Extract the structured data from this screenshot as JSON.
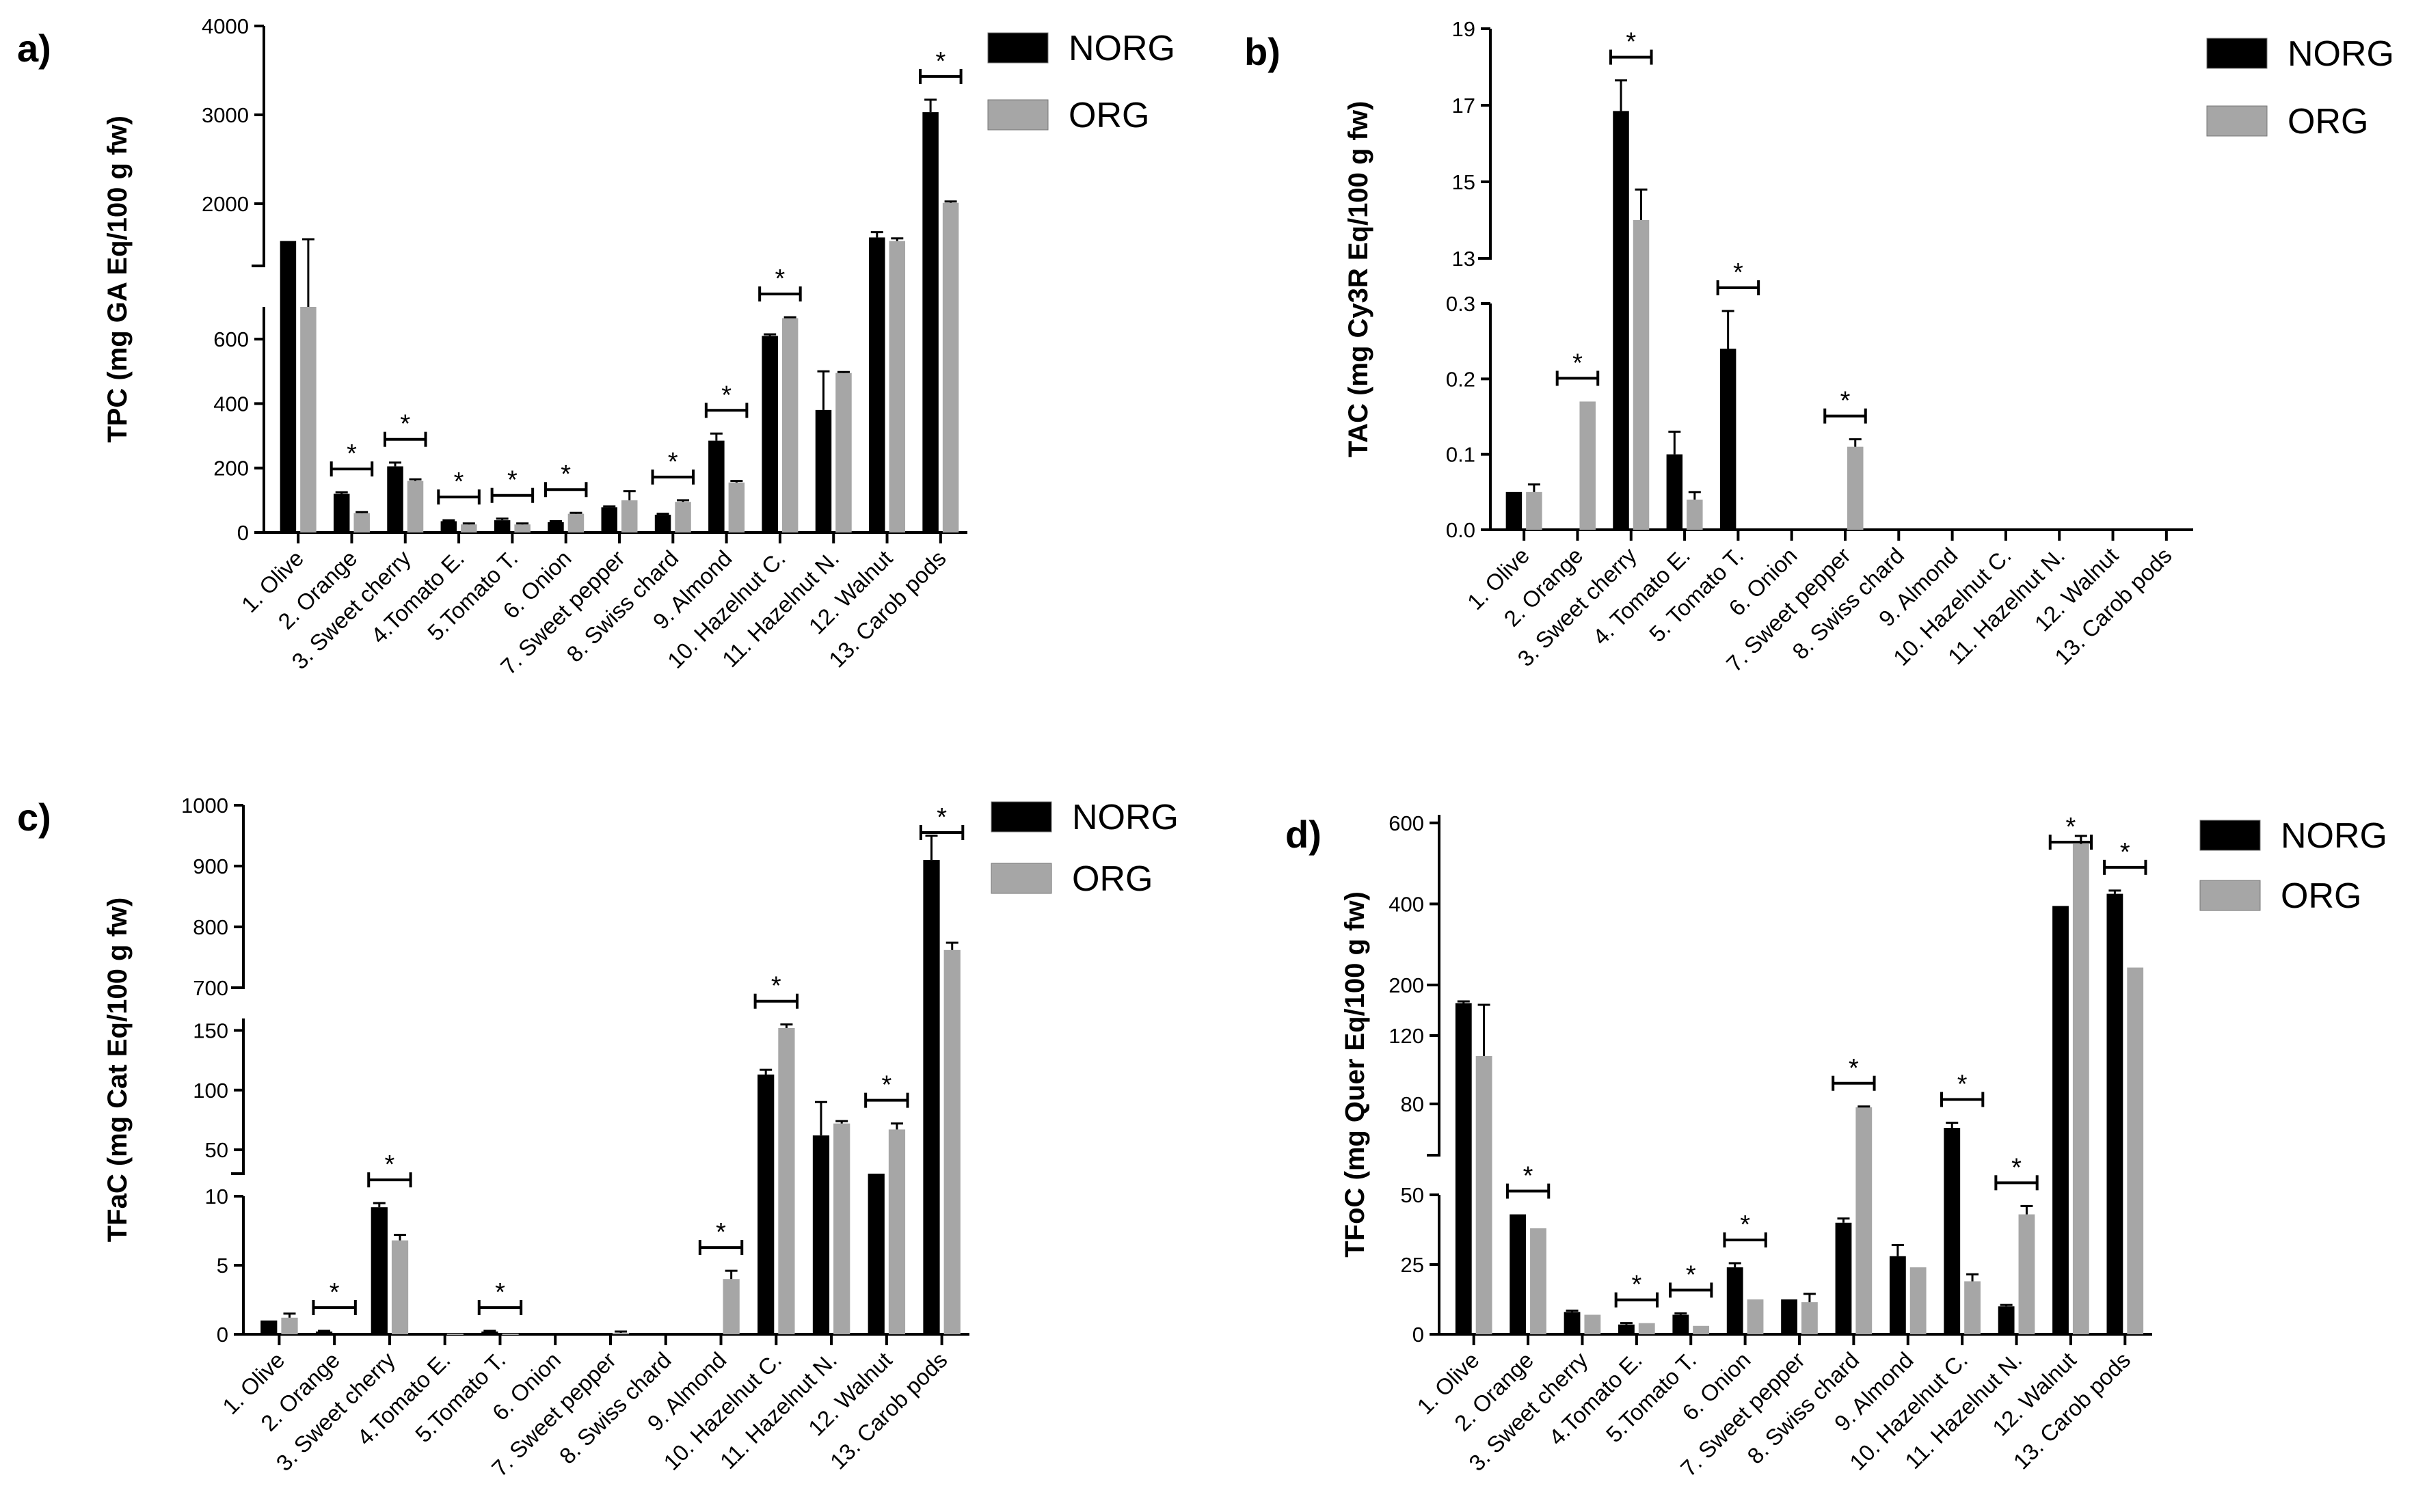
{
  "colors": {
    "NORG": "#000000",
    "ORG": "#a6a6a6"
  },
  "chart_data": [
    {
      "panel_label": "a)",
      "type": "bar",
      "title": "",
      "xlabel": "",
      "ylabel": "TPC (mg GA Eq/100 g fw)",
      "categories": [
        "1. Olive",
        "2. Orange",
        "3. Sweet cherry",
        "4.Tomato E.",
        "5.Tomato T.",
        "6. Onion",
        "7. Sweet pepper",
        "8. Swiss chard",
        "9. Almond",
        "10. Hazelnut C.",
        "11. Hazelnut N.",
        "12. Walnut",
        "13. Carob pods"
      ],
      "series": [
        {
          "name": "NORG",
          "values": [
            1580,
            120,
            205,
            35,
            38,
            32,
            78,
            55,
            285,
            610,
            380,
            1620,
            3030
          ],
          "errors": [
            0,
            5,
            12,
            3,
            5,
            3,
            3,
            3,
            22,
            5,
            120,
            60,
            140
          ]
        },
        {
          "name": "ORG",
          "values": [
            700,
            60,
            160,
            25,
            25,
            58,
            100,
            95,
            155,
            665,
            495,
            1580,
            2010
          ],
          "errors": [
            900,
            3,
            5,
            3,
            3,
            3,
            28,
            5,
            5,
            3,
            3,
            30,
            15
          ]
        }
      ],
      "significant": [
        "2. Orange",
        "3. Sweet cherry",
        "4.Tomato E.",
        "5.Tomato T.",
        "6. Onion",
        "8. Swiss chard",
        "9. Almond",
        "10. Hazelnut C.",
        "13. Carob pods"
      ],
      "y_segments": [
        {
          "range": [
            0,
            700
          ],
          "ticks": [
            "0",
            "200",
            "400",
            "600"
          ]
        },
        {
          "range": [
            1300,
            4000
          ],
          "ticks": [
            "2000",
            "3000",
            "4000"
          ]
        }
      ]
    },
    {
      "panel_label": "b)",
      "type": "bar",
      "title": "",
      "xlabel": "",
      "ylabel": "TAC (mg Cy3R Eq/100 g fw)",
      "categories": [
        "1. Olive",
        "2. Orange",
        "3. Sweet cherry",
        "4. Tomato E.",
        "5. Tomato T.",
        "6. Onion",
        "7. Sweet pepper",
        "8. Swiss chard",
        "9. Almond",
        "10. Hazelnut C.",
        "11. Hazelnut N.",
        "12. Walnut",
        "13. Carob pods"
      ],
      "series": [
        {
          "name": "NORG",
          "values": [
            0.05,
            0,
            16.85,
            0.1,
            0.24,
            0,
            0,
            0,
            0,
            0,
            0,
            0,
            0
          ],
          "errors": [
            0,
            0,
            0.8,
            0.03,
            0.05,
            0,
            0,
            0,
            0,
            0,
            0,
            0,
            0
          ]
        },
        {
          "name": "ORG",
          "values": [
            0.05,
            0.17,
            14.0,
            0.04,
            0,
            0,
            0.11,
            0,
            0,
            0,
            0,
            0,
            0
          ],
          "errors": [
            0.01,
            0,
            0.8,
            0.01,
            0,
            0,
            0.01,
            0,
            0,
            0,
            0,
            0,
            0
          ]
        }
      ],
      "significant": [
        "2. Orange",
        "3. Sweet cherry",
        "5. Tomato T.",
        "7. Sweet pepper"
      ],
      "y_segments": [
        {
          "range": [
            0,
            0.3
          ],
          "ticks": [
            "0.0",
            "0.1",
            "0.2",
            "0.3"
          ]
        },
        {
          "range": [
            13,
            19
          ],
          "ticks": [
            "13",
            "15",
            "17",
            "19"
          ]
        }
      ]
    },
    {
      "panel_label": "c)",
      "type": "bar",
      "title": "",
      "xlabel": "",
      "ylabel": "TFaC (mg Cat Eq/100 g fw)",
      "categories": [
        "1. Olive",
        "2. Orange",
        "3. Sweet cherry",
        "4.Tomato E.",
        "5.Tomato T.",
        "6. Onion",
        "7. Sweet pepper",
        "8. Swiss chard",
        "9. Almond",
        "10. Hazelnut C.",
        "11. Hazelnut N.",
        "12. Walnut",
        "13. Carob pods"
      ],
      "series": [
        {
          "name": "NORG",
          "values": [
            1,
            0.2,
            9.2,
            0.05,
            0.2,
            0,
            0.05,
            0,
            0,
            113,
            62,
            30,
            910
          ],
          "errors": [
            0,
            0.05,
            0.3,
            0,
            0.05,
            0,
            0,
            0,
            0,
            4,
            28,
            0,
            40
          ]
        },
        {
          "name": "ORG",
          "values": [
            1.2,
            0,
            6.8,
            0.05,
            0.05,
            0,
            0.1,
            0,
            4,
            152,
            72,
            67,
            762
          ],
          "errors": [
            0.3,
            0,
            0.4,
            0,
            0,
            0,
            0.1,
            0,
            0.6,
            3,
            2,
            5,
            12
          ]
        }
      ],
      "significant": [
        "2. Orange",
        "3. Sweet cherry",
        "5.Tomato T.",
        "9. Almond",
        "10. Hazelnut C.",
        "12. Walnut",
        "13. Carob pods"
      ],
      "y_segments": [
        {
          "range": [
            0,
            10
          ],
          "ticks": [
            "0",
            "5",
            "10"
          ]
        },
        {
          "range": [
            30,
            160
          ],
          "ticks": [
            "50",
            "100",
            "150"
          ]
        },
        {
          "range": [
            700,
            1000
          ],
          "ticks": [
            "700",
            "800",
            "900",
            "1000"
          ]
        }
      ]
    },
    {
      "panel_label": "d)",
      "type": "bar",
      "title": "",
      "xlabel": "",
      "ylabel": "TFoC (mg Quer Eq/100 g fw)",
      "categories": [
        "1. Olive",
        "2. Orange",
        "3. Sweet cherry",
        "4.Tomato E.",
        "5.Tomato T.",
        "6. Onion",
        "7. Sweet pepper",
        "8. Swiss chard",
        "9. Almond",
        "10. Hazelnut C.",
        "11. Hazelnut N.",
        "12. Walnut",
        "13. Carob pods"
      ],
      "series": [
        {
          "name": "NORG",
          "values": [
            139,
            43,
            8,
            3.5,
            7,
            24,
            12.5,
            40,
            28,
            66,
            10,
            395,
            425
          ],
          "errors": [
            1,
            0,
            0.5,
            0.5,
            0.5,
            1.5,
            0,
            1.5,
            4,
            3,
            0.5,
            0,
            8
          ]
        },
        {
          "name": "ORG",
          "values": [
            108,
            38,
            7,
            4,
            3,
            12.5,
            11.5,
            78,
            24,
            19,
            43,
            548,
            243
          ],
          "errors": [
            30,
            0,
            0,
            0,
            0,
            0,
            3,
            0.5,
            0,
            2.5,
            3,
            20,
            0
          ]
        }
      ],
      "significant": [
        "2. Orange",
        "4.Tomato E.",
        "5.Tomato T.",
        "6. Onion",
        "8. Swiss chard",
        "10. Hazelnut C.",
        "11. Hazelnut N.",
        "12. Walnut",
        "13. Carob pods"
      ],
      "y_segments": [
        {
          "range": [
            0,
            50
          ],
          "ticks": [
            "0",
            "25",
            "50"
          ]
        },
        {
          "range": [
            50,
            150
          ],
          "ticks": [
            "80",
            "120"
          ]
        },
        {
          "range": [
            200,
            620
          ],
          "ticks": [
            "200",
            "400",
            "600"
          ]
        }
      ]
    }
  ]
}
